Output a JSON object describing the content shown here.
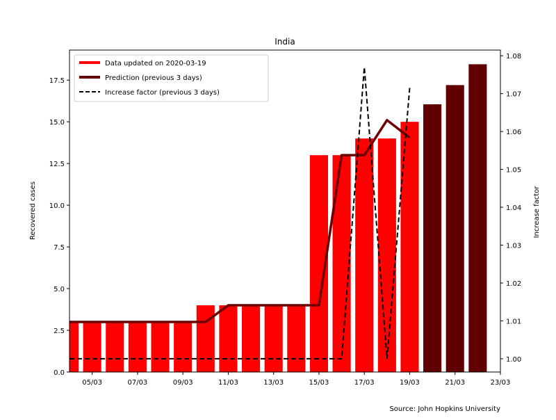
{
  "chart_data": {
    "type": "bar",
    "title": "India",
    "ylabel": "Recovered cases",
    "y2label": "Increase factor",
    "source": "Source: John Hopkins University",
    "grid": false,
    "legend_position": "upper-left",
    "xlim": [
      "2020-03-04",
      "2020-03-23"
    ],
    "ylim": [
      0,
      19.3
    ],
    "y2lim": [
      0.9965,
      1.0815
    ],
    "x_ticks": [
      "05/03",
      "07/03",
      "09/03",
      "11/03",
      "13/03",
      "15/03",
      "17/03",
      "19/03",
      "21/03",
      "23/03"
    ],
    "x_tick_dates": [
      "2020-03-05",
      "2020-03-07",
      "2020-03-09",
      "2020-03-11",
      "2020-03-13",
      "2020-03-15",
      "2020-03-17",
      "2020-03-19",
      "2020-03-21",
      "2020-03-23"
    ],
    "y_ticks": [
      "0.0",
      "2.5",
      "5.0",
      "7.5",
      "10.0",
      "12.5",
      "15.0",
      "17.5"
    ],
    "y_tick_values": [
      0,
      2.5,
      5,
      7.5,
      10,
      12.5,
      15,
      17.5
    ],
    "y2_ticks": [
      "1.00",
      "1.01",
      "1.02",
      "1.03",
      "1.04",
      "1.05",
      "1.06",
      "1.07",
      "1.08"
    ],
    "y2_tick_values": [
      1.0,
      1.01,
      1.02,
      1.03,
      1.04,
      1.05,
      1.06,
      1.07,
      1.08
    ],
    "bars_data": {
      "name": "Data updated on 2020-03-19",
      "color": "#ff0000",
      "x": [
        "2020-03-04",
        "2020-03-05",
        "2020-03-06",
        "2020-03-07",
        "2020-03-08",
        "2020-03-09",
        "2020-03-10",
        "2020-03-11",
        "2020-03-12",
        "2020-03-13",
        "2020-03-14",
        "2020-03-15",
        "2020-03-16",
        "2020-03-17",
        "2020-03-18",
        "2020-03-19"
      ],
      "values": [
        3,
        3,
        3,
        3,
        3,
        3,
        4,
        4,
        4,
        4,
        4,
        13,
        13,
        14,
        14,
        15
      ]
    },
    "bars_prediction": {
      "color": "#600000",
      "x": [
        "2020-03-20",
        "2020-03-21",
        "2020-03-22"
      ],
      "values": [
        16.05,
        17.2,
        18.45
      ]
    },
    "line_prediction": {
      "name": "Prediction (previous 3 days)",
      "color": "#6b0000",
      "x": [
        "2020-03-04",
        "2020-03-10",
        "2020-03-11",
        "2020-03-15",
        "2020-03-16",
        "2020-03-17",
        "2020-03-18",
        "2020-03-19"
      ],
      "values": [
        3,
        3,
        4,
        4,
        13,
        13,
        15.1,
        14.05
      ]
    },
    "line_factor": {
      "name": "Increase factor (previous 3 days)",
      "color": "#000000",
      "axis": "right",
      "x": [
        "2020-03-04",
        "2020-03-16",
        "2020-03-17",
        "2020-03-18",
        "2020-03-19"
      ],
      "values": [
        1.0,
        1.0,
        1.077,
        1.0,
        1.0715
      ]
    }
  }
}
